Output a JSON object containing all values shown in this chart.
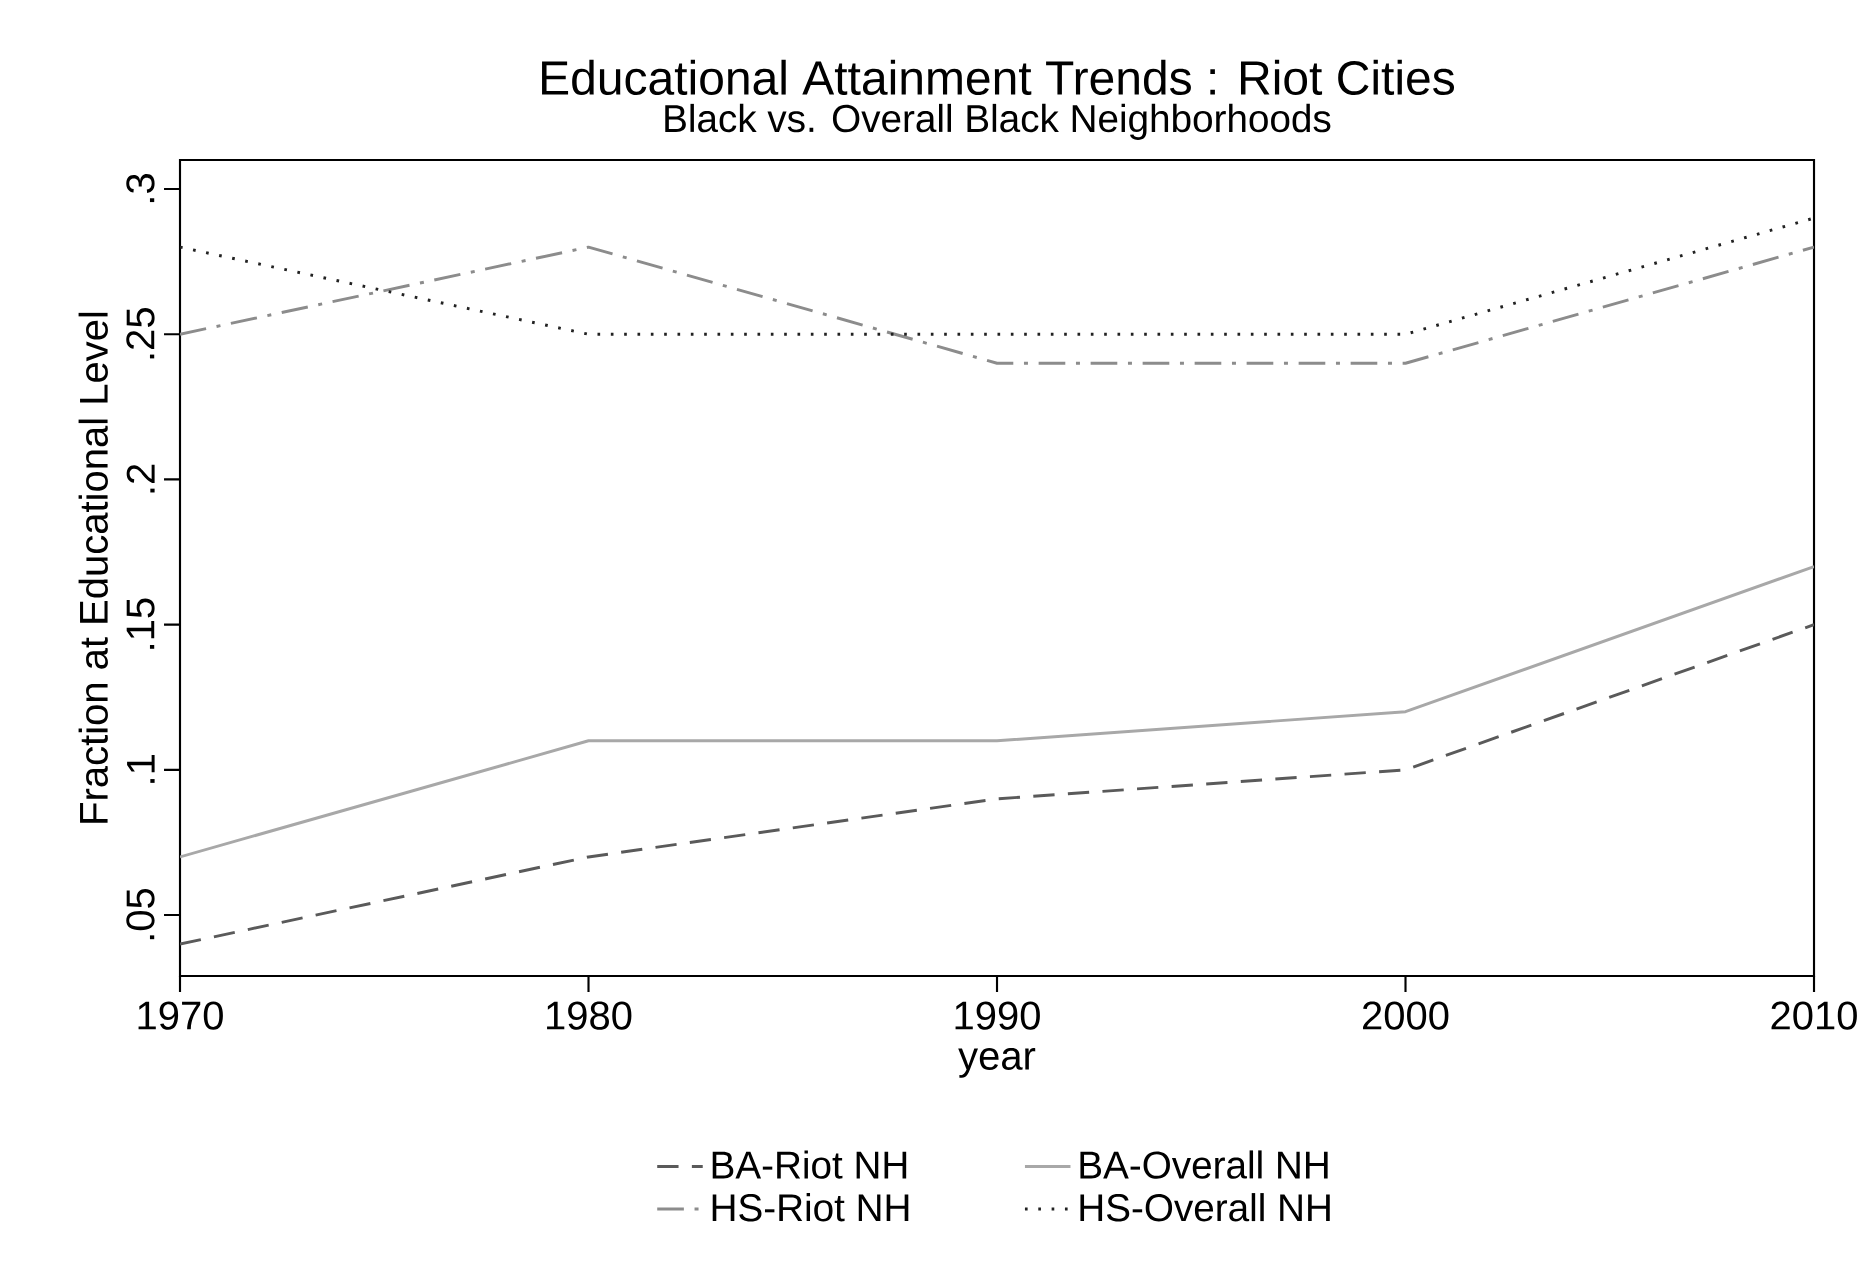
{
  "chart_data": {
    "type": "line",
    "title": "Educational Attainment Trends : Riot Cities",
    "subtitle": "Black vs. Overall Black Neighborhoods",
    "xlabel": "year",
    "ylabel": "Fraction at Educational Level",
    "x": [
      1970,
      1980,
      1990,
      2000,
      2010
    ],
    "series": [
      {
        "name": "BA-Riot NH",
        "color": "#5a5a5a",
        "line_style": "dashed",
        "values": [
          0.04,
          0.07,
          0.09,
          0.1,
          0.15
        ]
      },
      {
        "name": "BA-Overall NH",
        "color": "#a8a8a8",
        "line_style": "solid",
        "values": [
          0.07,
          0.11,
          0.11,
          0.12,
          0.17
        ]
      },
      {
        "name": "HS-Riot NH",
        "color": "#8c8c8c",
        "line_style": "dashdot",
        "values": [
          0.25,
          0.28,
          0.24,
          0.24,
          0.28
        ]
      },
      {
        "name": "HS-Overall NH",
        "color": "#222222",
        "line_style": "dotted",
        "values": [
          0.28,
          0.25,
          0.25,
          0.25,
          0.29
        ]
      }
    ],
    "xlim": [
      1970,
      2010
    ],
    "ylim": [
      0.029,
      0.31
    ],
    "xticks": [
      1970,
      1980,
      1990,
      2000,
      2010
    ],
    "yticks": [
      {
        "value": 0.05,
        "label": ".05"
      },
      {
        "value": 0.1,
        "label": ".1"
      },
      {
        "value": 0.15,
        "label": ".15"
      },
      {
        "value": 0.2,
        "label": ".2"
      },
      {
        "value": 0.25,
        "label": ".25"
      },
      {
        "value": 0.3,
        "label": ".3"
      }
    ],
    "grid": false,
    "legend": "bottom",
    "marker": "none"
  }
}
